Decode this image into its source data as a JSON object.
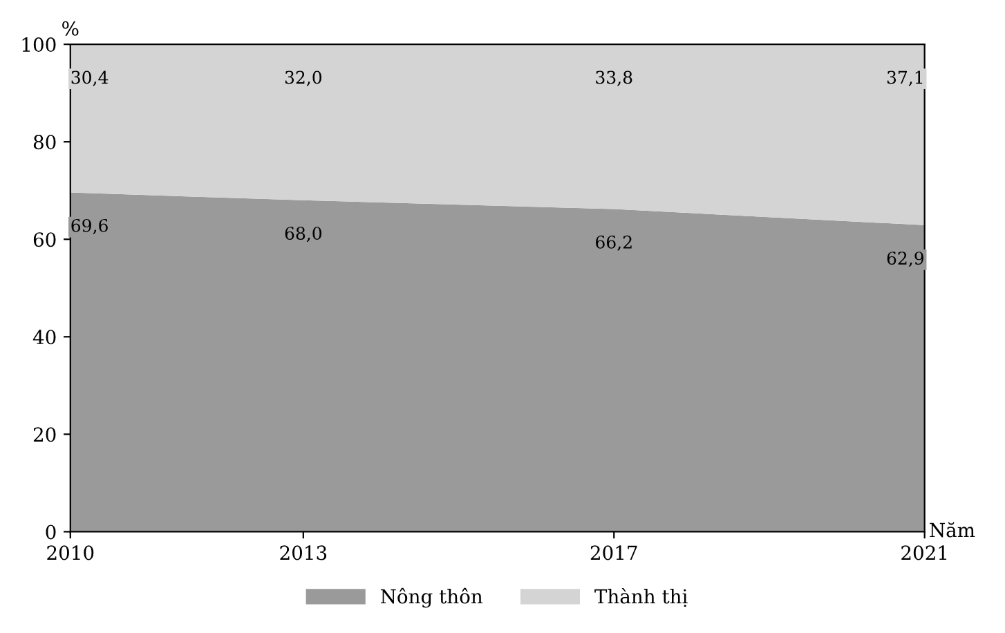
{
  "chart_data": {
    "type": "area",
    "stacked": true,
    "xlabel": "Năm",
    "ylabel": "%",
    "x": [
      2010,
      2013,
      2017,
      2021
    ],
    "series": [
      {
        "name": "Nông thôn",
        "color": "#9a9a9a",
        "values": [
          69.6,
          68.0,
          66.2,
          62.9
        ],
        "value_labels": [
          "69,6",
          "68,0",
          "66,2",
          "62,9"
        ]
      },
      {
        "name": "Thành thị",
        "color": "#d4d4d4",
        "values": [
          30.4,
          32.0,
          33.8,
          37.1
        ],
        "value_labels": [
          "30,4",
          "32,0",
          "33,8",
          "37,1"
        ]
      }
    ],
    "xlim": [
      2010,
      2021
    ],
    "xticks": [
      2010,
      2013,
      2017,
      2021
    ],
    "ylim": [
      0,
      100
    ],
    "yticks": [
      0,
      20,
      40,
      60,
      80,
      100
    ],
    "grid": false,
    "legend": "bottom"
  }
}
